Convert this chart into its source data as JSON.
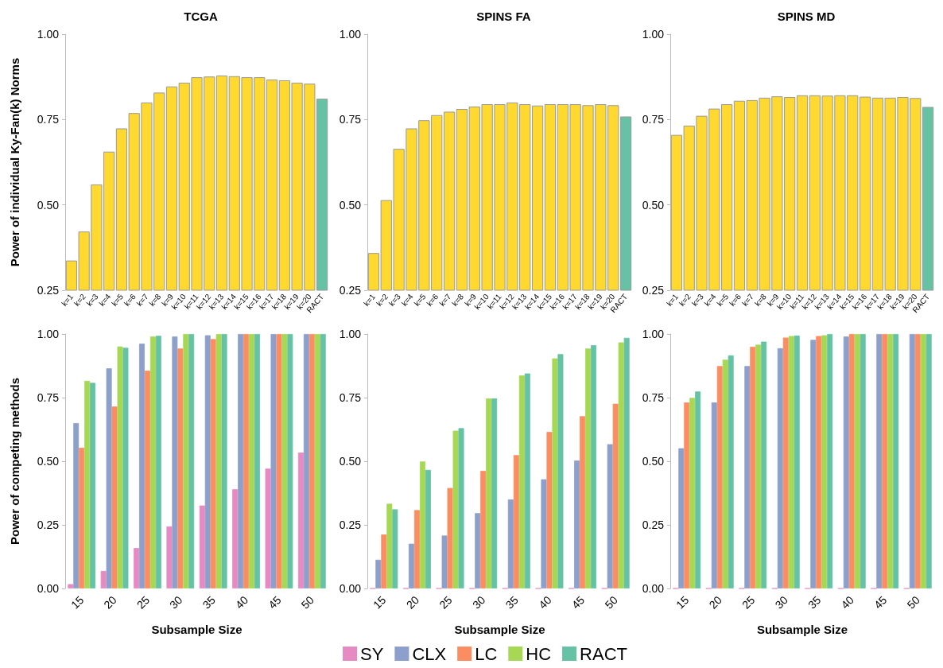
{
  "chart_data": [
    {
      "type": "bar",
      "title": "TCGA",
      "ylabel": "Power of individual Ky-Fan(k) Norms",
      "categories": [
        "k=1",
        "k=2",
        "k=3",
        "k=4",
        "k=5",
        "k=6",
        "k=7",
        "k=8",
        "k=9",
        "k=10",
        "k=11",
        "k=12",
        "k=13",
        "k=14",
        "k=15",
        "k=16",
        "k=17",
        "k=18",
        "k=19",
        "k=20",
        "RACT"
      ],
      "values": [
        0.337,
        0.422,
        0.56,
        0.656,
        0.724,
        0.769,
        0.8,
        0.829,
        0.847,
        0.858,
        0.874,
        0.876,
        0.879,
        0.877,
        0.874,
        0.874,
        0.867,
        0.865,
        0.858,
        0.855,
        0.811
      ],
      "colors": [
        "#ffd92f",
        "#ffd92f",
        "#ffd92f",
        "#ffd92f",
        "#ffd92f",
        "#ffd92f",
        "#ffd92f",
        "#ffd92f",
        "#ffd92f",
        "#ffd92f",
        "#ffd92f",
        "#ffd92f",
        "#ffd92f",
        "#ffd92f",
        "#ffd92f",
        "#ffd92f",
        "#ffd92f",
        "#ffd92f",
        "#ffd92f",
        "#ffd92f",
        "#66c2a5"
      ],
      "ylim": [
        0.25,
        1
      ],
      "yticks": [
        {
          "value": 0.25,
          "label": "0.25"
        },
        {
          "value": 0.5,
          "label": "0.50"
        },
        {
          "value": 0.75,
          "label": "0.75"
        },
        {
          "value": 1,
          "label": "1.00"
        }
      ],
      "legend": false
    },
    {
      "type": "bar",
      "title": "SPINS FA",
      "categories": [
        "k=1",
        "k=2",
        "k=3",
        "k=4",
        "k=5",
        "k=6",
        "k=7",
        "k=8",
        "k=9",
        "k=10",
        "k=11",
        "k=12",
        "k=13",
        "k=14",
        "k=15",
        "k=16",
        "k=17",
        "k=18",
        "k=19",
        "k=20",
        "RACT"
      ],
      "values": [
        0.359,
        0.514,
        0.664,
        0.724,
        0.748,
        0.763,
        0.773,
        0.781,
        0.788,
        0.795,
        0.795,
        0.8,
        0.795,
        0.791,
        0.795,
        0.795,
        0.795,
        0.792,
        0.795,
        0.792,
        0.759
      ],
      "colors": [
        "#ffd92f",
        "#ffd92f",
        "#ffd92f",
        "#ffd92f",
        "#ffd92f",
        "#ffd92f",
        "#ffd92f",
        "#ffd92f",
        "#ffd92f",
        "#ffd92f",
        "#ffd92f",
        "#ffd92f",
        "#ffd92f",
        "#ffd92f",
        "#ffd92f",
        "#ffd92f",
        "#ffd92f",
        "#ffd92f",
        "#ffd92f",
        "#ffd92f",
        "#66c2a5"
      ],
      "ylim": [
        0.25,
        1
      ],
      "yticks": [
        {
          "value": 0.25,
          "label": "0.25"
        },
        {
          "value": 0.5,
          "label": "0.50"
        },
        {
          "value": 0.75,
          "label": "0.75"
        },
        {
          "value": 1,
          "label": "1.00"
        }
      ],
      "legend": false
    },
    {
      "type": "bar",
      "title": "SPINS MD",
      "categories": [
        "k=1",
        "k=2",
        "k=3",
        "k=4",
        "k=5",
        "k=6",
        "k=7",
        "k=8",
        "k=9",
        "k=10",
        "k=11",
        "k=12",
        "k=13",
        "k=14",
        "k=15",
        "k=16",
        "k=17",
        "k=18",
        "k=19",
        "k=20",
        "RACT"
      ],
      "values": [
        0.705,
        0.732,
        0.761,
        0.782,
        0.795,
        0.805,
        0.807,
        0.814,
        0.818,
        0.816,
        0.821,
        0.821,
        0.82,
        0.821,
        0.821,
        0.817,
        0.814,
        0.814,
        0.816,
        0.813,
        0.787
      ],
      "colors": [
        "#ffd92f",
        "#ffd92f",
        "#ffd92f",
        "#ffd92f",
        "#ffd92f",
        "#ffd92f",
        "#ffd92f",
        "#ffd92f",
        "#ffd92f",
        "#ffd92f",
        "#ffd92f",
        "#ffd92f",
        "#ffd92f",
        "#ffd92f",
        "#ffd92f",
        "#ffd92f",
        "#ffd92f",
        "#ffd92f",
        "#ffd92f",
        "#ffd92f",
        "#66c2a5"
      ],
      "ylim": [
        0.25,
        1
      ],
      "yticks": [
        {
          "value": 0.25,
          "label": "0.25"
        },
        {
          "value": 0.5,
          "label": "0.50"
        },
        {
          "value": 0.75,
          "label": "0.75"
        },
        {
          "value": 1,
          "label": "1.00"
        }
      ],
      "legend": false
    },
    {
      "type": "bar",
      "xlabel": "Subsample Size",
      "ylabel": "Power of competing methods",
      "categories": [
        "15",
        "20",
        "25",
        "30",
        "35",
        "40",
        "45",
        "50"
      ],
      "series": [
        {
          "color": "#e78ac3",
          "values": [
            0.017,
            0.069,
            0.159,
            0.244,
            0.326,
            0.39,
            0.471,
            0.534
          ]
        },
        {
          "color": "#8da0cb",
          "values": [
            0.65,
            0.865,
            0.962,
            0.99,
            0.995,
            1,
            1,
            1
          ]
        },
        {
          "color": "#fc8d62",
          "values": [
            0.553,
            0.715,
            0.856,
            0.943,
            0.98,
            1,
            1,
            1
          ]
        },
        {
          "color": "#a6d854",
          "values": [
            0.816,
            0.951,
            0.99,
            1,
            1,
            1,
            1,
            1
          ]
        },
        {
          "color": "#66c2a5",
          "values": [
            0.808,
            0.946,
            0.993,
            1,
            1,
            1,
            1,
            1
          ]
        }
      ],
      "ylim": [
        0,
        1
      ],
      "yticks": [
        {
          "value": 0,
          "label": "0.00"
        },
        {
          "value": 0.25,
          "label": "0.25"
        },
        {
          "value": 0.5,
          "label": "0.50"
        },
        {
          "value": 0.75,
          "label": "0.75"
        },
        {
          "value": 1,
          "label": "1.00"
        }
      ],
      "legend": false
    },
    {
      "type": "bar",
      "xlabel": "Subsample Size",
      "categories": [
        "15",
        "20",
        "25",
        "30",
        "35",
        "40",
        "45",
        "50"
      ],
      "series": [
        {
          "name": "SY",
          "color": "#e78ac3",
          "values": [
            0,
            0,
            0,
            0,
            0,
            0,
            0,
            0
          ]
        },
        {
          "name": "CLX",
          "color": "#8da0cb",
          "values": [
            0.113,
            0.176,
            0.208,
            0.296,
            0.35,
            0.429,
            0.503,
            0.567
          ]
        },
        {
          "name": "LC",
          "color": "#fc8d62",
          "values": [
            0.212,
            0.308,
            0.395,
            0.462,
            0.524,
            0.615,
            0.677,
            0.726
          ]
        },
        {
          "name": "HC",
          "color": "#a6d854",
          "values": [
            0.333,
            0.499,
            0.62,
            0.747,
            0.837,
            0.904,
            0.943,
            0.967
          ]
        },
        {
          "name": "RACT",
          "color": "#66c2a5",
          "values": [
            0.311,
            0.466,
            0.63,
            0.747,
            0.845,
            0.921,
            0.956,
            0.985
          ]
        }
      ],
      "ylim": [
        0,
        1
      ],
      "yticks": [
        {
          "value": 0,
          "label": "0.00"
        },
        {
          "value": 0.25,
          "label": "0.25"
        },
        {
          "value": 0.5,
          "label": "0.50"
        },
        {
          "value": 0.75,
          "label": "0.75"
        },
        {
          "value": 1,
          "label": "1.00"
        }
      ],
      "legend": "bottom"
    },
    {
      "type": "bar",
      "xlabel": "Subsample Size",
      "categories": [
        "15",
        "20",
        "25",
        "30",
        "35",
        "40",
        "45",
        "50"
      ],
      "series": [
        {
          "color": "#e78ac3",
          "values": [
            0,
            0,
            0,
            0,
            0,
            0,
            0,
            0
          ]
        },
        {
          "color": "#8da0cb",
          "values": [
            0.551,
            0.731,
            0.874,
            0.944,
            0.977,
            0.99,
            1,
            1
          ]
        },
        {
          "color": "#fc8d62",
          "values": [
            0.731,
            0.874,
            0.95,
            0.986,
            0.992,
            1,
            1,
            1
          ]
        },
        {
          "color": "#a6d854",
          "values": [
            0.749,
            0.899,
            0.958,
            0.992,
            0.995,
            1,
            1,
            1
          ]
        },
        {
          "color": "#66c2a5",
          "values": [
            0.774,
            0.916,
            0.97,
            0.994,
            1,
            1,
            1,
            1
          ]
        }
      ],
      "ylim": [
        0,
        1
      ],
      "yticks": [
        {
          "value": 0,
          "label": "0.00"
        },
        {
          "value": 0.25,
          "label": "0.25"
        },
        {
          "value": 0.5,
          "label": "0.50"
        },
        {
          "value": 0.75,
          "label": "0.75"
        },
        {
          "value": 1,
          "label": "1.00"
        }
      ],
      "legend": false
    }
  ]
}
